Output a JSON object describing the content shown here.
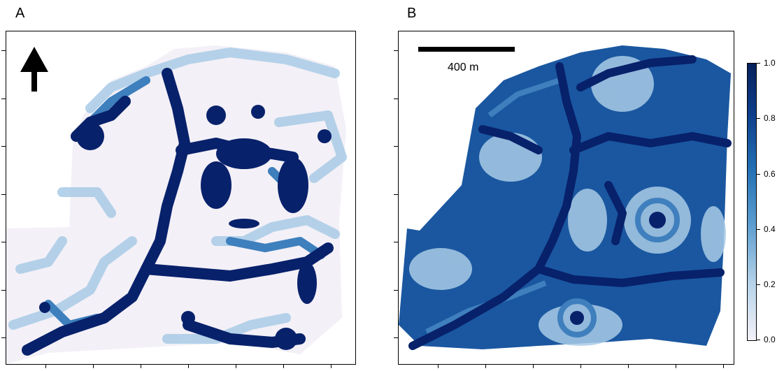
{
  "panels": {
    "a": {
      "label": "A"
    },
    "b": {
      "label": "B"
    }
  },
  "scale_bar": {
    "text": "400 m"
  },
  "north_arrow": {
    "icon": "north-arrow-icon"
  },
  "legend": {
    "ticks": [
      "1.0",
      "0.8",
      "0.6",
      "0.4",
      "0.2",
      "0.0"
    ],
    "min": 0.0,
    "max": 1.0,
    "color_low": "#f4f1f8",
    "color_high": "#08215c"
  },
  "colors": {
    "dark": "#08216b",
    "mid": "#1f5fa8",
    "light": "#9ec6e4",
    "pale": "#f1eef6"
  }
}
